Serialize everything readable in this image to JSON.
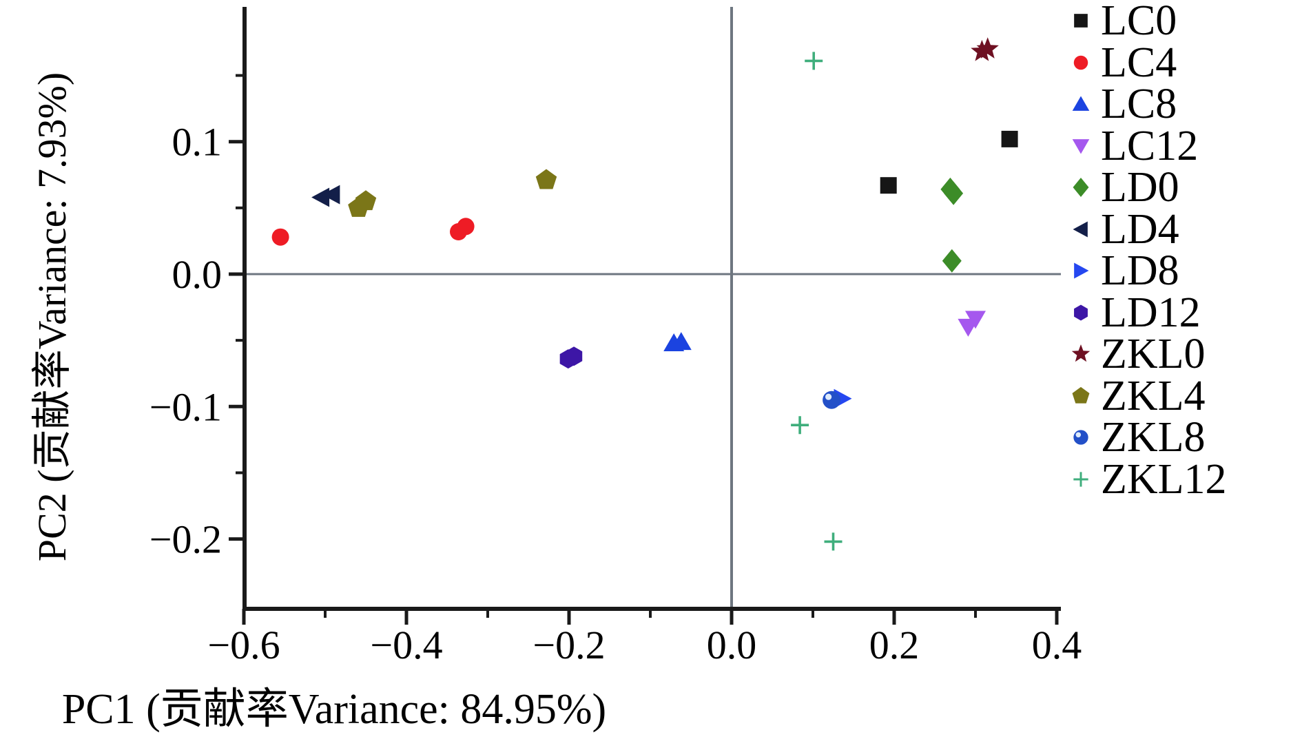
{
  "figure": {
    "background": "#ffffff"
  },
  "chart_data": {
    "type": "scatter",
    "title": "",
    "xlabel": "PC1 (贡献率Variance: 84.95%)",
    "ylabel": "PC2 (贡献率Variance: 7.93%)",
    "xlim": [
      -0.6,
      0.405
    ],
    "ylim": [
      -0.253,
      0.202
    ],
    "x_major_ticks": [
      -0.6,
      -0.4,
      -0.2,
      0.0,
      0.2,
      0.4
    ],
    "x_major_tick_labels": [
      "−0.6",
      "−0.4",
      "−0.2",
      "0.0",
      "0.2",
      "0.4"
    ],
    "x_minor_ticks": [
      -0.5,
      -0.3,
      -0.1,
      0.1,
      0.3
    ],
    "y_major_ticks": [
      0.1,
      0.0,
      -0.1,
      -0.2
    ],
    "y_major_tick_labels": [
      "0.1",
      "0.0",
      "−0.1",
      "−0.2"
    ],
    "y_minor_ticks": [
      0.15,
      0.05,
      -0.05,
      -0.15
    ],
    "grid": false,
    "zero_lines": true,
    "axis_color": "#1a1a1a",
    "zero_line_color": "#6e7680",
    "legend_position": "right-outside",
    "series": [
      {
        "name": "LC0",
        "marker": "square",
        "color": "#161616",
        "points": [
          [
            0.193,
            0.067
          ],
          [
            0.342,
            0.102
          ]
        ]
      },
      {
        "name": "LC4",
        "marker": "circle",
        "color": "#ee1c25",
        "points": [
          [
            -0.555,
            0.028
          ],
          [
            -0.336,
            0.032
          ],
          [
            -0.327,
            0.036
          ]
        ]
      },
      {
        "name": "LC8",
        "marker": "triangle-up",
        "color": "#1b43e0",
        "points": [
          [
            -0.071,
            -0.052
          ],
          [
            -0.062,
            -0.051
          ]
        ]
      },
      {
        "name": "LC12",
        "marker": "triangle-down",
        "color": "#a558ee",
        "points": [
          [
            0.291,
            -0.04
          ],
          [
            0.3,
            -0.034
          ]
        ]
      },
      {
        "name": "LD0",
        "marker": "diamond",
        "color": "#3c8c28",
        "points": [
          [
            0.269,
            0.064
          ],
          [
            0.273,
            0.061
          ],
          [
            0.271,
            0.01
          ]
        ]
      },
      {
        "name": "LD4",
        "marker": "triangle-left",
        "color": "#131f49",
        "points": [
          [
            -0.505,
            0.058
          ],
          [
            -0.492,
            0.06
          ]
        ]
      },
      {
        "name": "LD8",
        "marker": "triangle-right",
        "color": "#2547f0",
        "points": [
          [
            0.136,
            -0.094
          ]
        ]
      },
      {
        "name": "LD12",
        "marker": "hexagon",
        "color": "#3d16a6",
        "points": [
          [
            -0.201,
            -0.064
          ],
          [
            -0.194,
            -0.062
          ]
        ]
      },
      {
        "name": "ZKL0",
        "marker": "star",
        "color": "#6e1022",
        "points": [
          [
            0.308,
            0.168
          ],
          [
            0.315,
            0.17
          ]
        ]
      },
      {
        "name": "ZKL4",
        "marker": "pentagon",
        "color": "#7b7618",
        "points": [
          [
            -0.459,
            0.05
          ],
          [
            -0.45,
            0.055
          ],
          [
            -0.228,
            0.071
          ]
        ]
      },
      {
        "name": "ZKL8",
        "marker": "sphere",
        "color": "#2350c8",
        "points": [
          [
            0.123,
            -0.095
          ]
        ]
      },
      {
        "name": "ZKL12",
        "marker": "plus",
        "color": "#3fae7c",
        "points": [
          [
            0.101,
            0.161
          ],
          [
            0.084,
            -0.114
          ],
          [
            0.125,
            -0.202
          ]
        ]
      }
    ]
  }
}
